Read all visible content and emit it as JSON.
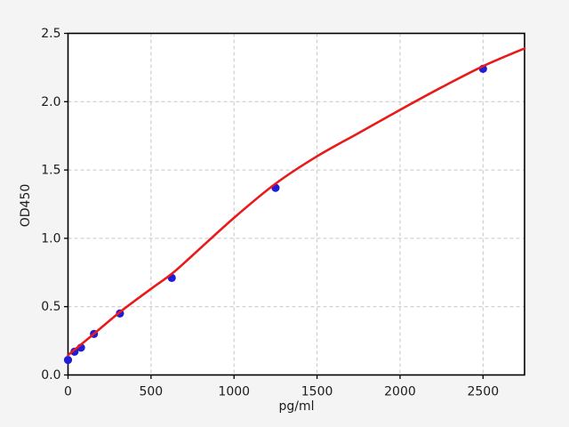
{
  "chart_data": {
    "type": "scatter",
    "title": "",
    "xlabel": "pg/ml",
    "ylabel": "OD450",
    "xlim": [
      0,
      2750
    ],
    "ylim": [
      0,
      2.5
    ],
    "grid": true,
    "grid_style": "dashed",
    "legend": "none",
    "xticks": {
      "values": [
        0,
        500,
        1000,
        1500,
        2000,
        2500
      ],
      "labels": [
        "0",
        "500",
        "1000",
        "1500",
        "2000",
        "2500"
      ]
    },
    "yticks": {
      "values": [
        0,
        0.5,
        1.0,
        1.5,
        2.0,
        2.5
      ],
      "labels": [
        "0.0",
        "0.5",
        "1.0",
        "1.5",
        "2.0",
        "2.5"
      ]
    },
    "series": [
      {
        "name": "standard-points",
        "type": "scatter",
        "marker": "circle",
        "color": "#1e1ed8",
        "points": [
          [
            0,
            0.11
          ],
          [
            39.06,
            0.17
          ],
          [
            78.13,
            0.2
          ],
          [
            156.25,
            0.3
          ],
          [
            312.5,
            0.45
          ],
          [
            625,
            0.71
          ],
          [
            1250,
            1.37
          ],
          [
            2500,
            2.24
          ]
        ]
      },
      {
        "name": "fit-curve",
        "type": "line",
        "color": "#e81a1a",
        "points": [
          [
            0,
            0.145
          ],
          [
            150,
            0.295
          ],
          [
            312.5,
            0.46
          ],
          [
            500,
            0.63
          ],
          [
            625,
            0.74
          ],
          [
            750,
            0.875
          ],
          [
            1000,
            1.15
          ],
          [
            1250,
            1.4
          ],
          [
            1500,
            1.6
          ],
          [
            1750,
            1.77
          ],
          [
            2000,
            1.94
          ],
          [
            2250,
            2.105
          ],
          [
            2500,
            2.26
          ],
          [
            2750,
            2.39
          ]
        ]
      }
    ],
    "colors": {
      "figure_background": "#f4f4f4",
      "plot_background": "#ffffff",
      "grid": "#c6c6c6",
      "spine": "#000000",
      "tick_text": "#1c1c1c"
    }
  }
}
